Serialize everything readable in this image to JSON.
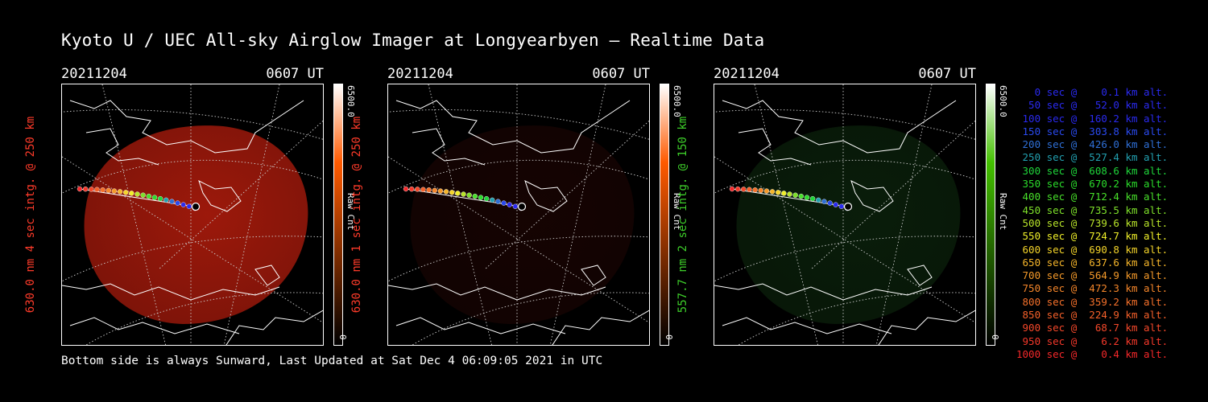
{
  "title": "Kyoto U / UEC All-sky Airglow Imager at Longyearbyen — Realtime Data",
  "footer": "Bottom side is always Sunward, Last Updated at Sat Dec  4 06:09:05 2021 in UTC",
  "panels": [
    {
      "date": "20211204",
      "time": "0607 UT",
      "ylabel": "630.0 nm 4 sec intg. @ 250 km",
      "label_color": "#ff3b2a",
      "cbar_max": "6500.0",
      "cbar_unit": "Raw Cnt",
      "cbar_min": "0",
      "cbar_color": "#ff5a00",
      "glow": "#b81d0d",
      "glow_level": 0.85
    },
    {
      "date": "20211204",
      "time": "0607 UT",
      "ylabel": "630.0 nm 1 sec intg. @ 250 km",
      "label_color": "#ff3b2a",
      "cbar_max": "6500.0",
      "cbar_unit": "Raw Cnt",
      "cbar_min": "0",
      "cbar_color": "#ff5a00",
      "glow": "#3d0a06",
      "glow_level": 0.35
    },
    {
      "date": "20211204",
      "time": "0607 UT",
      "ylabel": "557.7 nm 2 sec intg. @ 150 km",
      "label_color": "#3ecf2a",
      "cbar_max": "6500.0",
      "cbar_unit": "Raw Cnt",
      "cbar_min": "0",
      "cbar_color": "#43c000",
      "glow": "#133a14",
      "glow_level": 0.5
    }
  ],
  "legend": [
    {
      "text": "   0 sec @    0.1 km alt.",
      "color": "#2a2af0"
    },
    {
      "text": "  50 sec @   52.0 km alt.",
      "color": "#2a2af0"
    },
    {
      "text": " 100 sec @  160.2 km alt.",
      "color": "#2a2af0"
    },
    {
      "text": " 150 sec @  303.8 km alt.",
      "color": "#2a4af0"
    },
    {
      "text": " 200 sec @  426.0 km alt.",
      "color": "#2f6fd6"
    },
    {
      "text": " 250 sec @  527.4 km alt.",
      "color": "#22a0b0"
    },
    {
      "text": " 300 sec @  608.6 km alt.",
      "color": "#1fd63a"
    },
    {
      "text": " 350 sec @  670.2 km alt.",
      "color": "#2bdc2b"
    },
    {
      "text": " 400 sec @  712.4 km alt.",
      "color": "#48e02a"
    },
    {
      "text": " 450 sec @  735.5 km alt.",
      "color": "#7ee02a"
    },
    {
      "text": " 500 sec @  739.6 km alt.",
      "color": "#b9e52a"
    },
    {
      "text": " 550 sec @  724.7 km alt.",
      "color": "#f0f02a"
    },
    {
      "text": " 600 sec @  690.8 km alt.",
      "color": "#f5d52a"
    },
    {
      "text": " 650 sec @  637.6 km alt.",
      "color": "#f5b52a"
    },
    {
      "text": " 700 sec @  564.9 km alt.",
      "color": "#f59a2a"
    },
    {
      "text": " 750 sec @  472.3 km alt.",
      "color": "#f5862a"
    },
    {
      "text": " 800 sec @  359.2 km alt.",
      "color": "#f5702a"
    },
    {
      "text": " 850 sec @  224.9 km alt.",
      "color": "#f5602a"
    },
    {
      "text": " 900 sec @   68.7 km alt.",
      "color": "#f5482a"
    },
    {
      "text": " 950 sec @    6.2 km alt.",
      "color": "#f5382a"
    },
    {
      "text": "1000 sec @    0.4 km alt.",
      "color": "#f5282a"
    }
  ]
}
